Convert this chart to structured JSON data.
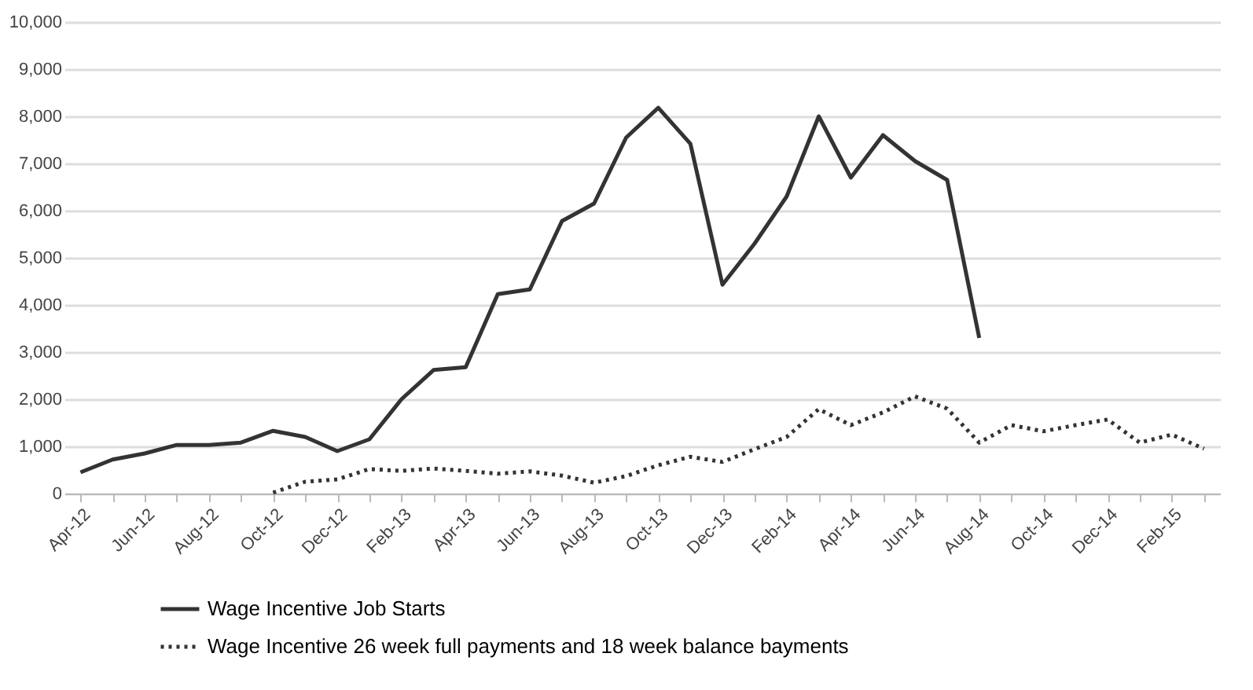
{
  "chart_data": {
    "type": "line",
    "categories": [
      "Apr-12",
      null,
      "Jun-12",
      null,
      "Aug-12",
      null,
      "Oct-12",
      null,
      "Dec-12",
      null,
      "Feb-13",
      null,
      "Apr-13",
      null,
      "Jun-13",
      null,
      "Aug-13",
      null,
      "Oct-13",
      null,
      "Dec-13",
      null,
      "Feb-14",
      null,
      "Apr-14",
      null,
      "Jun-14",
      null,
      "Aug-14",
      null,
      "Oct-14",
      null,
      "Dec-14",
      null,
      "Feb-15",
      null
    ],
    "series": [
      {
        "name": "Wage Incentive Job Starts",
        "color": "#333333",
        "line_style": "solid",
        "values": [
          450,
          720,
          850,
          1030,
          1030,
          1080,
          1330,
          1200,
          900,
          1150,
          2000,
          2620,
          2680,
          4230,
          4330,
          5780,
          6150,
          7550,
          8180,
          7420,
          4430,
          5300,
          6300,
          8000,
          6700,
          7600,
          7050,
          6650,
          3300,
          null,
          null,
          null,
          null,
          null,
          null,
          null
        ]
      },
      {
        "name": "Wage Incentive 26 week full payments and 18 week balance bayments",
        "color": "#333333",
        "line_style": "dotted",
        "values": [
          null,
          null,
          null,
          null,
          null,
          null,
          20,
          250,
          300,
          520,
          480,
          530,
          480,
          420,
          470,
          380,
          230,
          370,
          600,
          780,
          670,
          940,
          1200,
          1790,
          1450,
          1720,
          2060,
          1800,
          1080,
          1450,
          1320,
          1450,
          1570,
          1080,
          1250,
          950
        ]
      }
    ],
    "ylim": [
      0,
      10000
    ],
    "yticks": [
      0,
      {
        "value": 1000,
        "label": "1,000"
      },
      {
        "value": 2000,
        "label": "2,000"
      },
      {
        "value": 3000,
        "label": "3,000"
      },
      {
        "value": 4000,
        "label": "4,000"
      },
      {
        "value": 5000,
        "label": "5,000"
      },
      {
        "value": 6000,
        "label": "6,000"
      },
      {
        "value": 7000,
        "label": "7,000"
      },
      {
        "value": 8000,
        "label": "8,000"
      },
      {
        "value": 9000,
        "label": "9,000"
      },
      {
        "value": 10000,
        "label": "10,000"
      }
    ],
    "grid": "y",
    "legend": "bottom",
    "marker": "none"
  }
}
